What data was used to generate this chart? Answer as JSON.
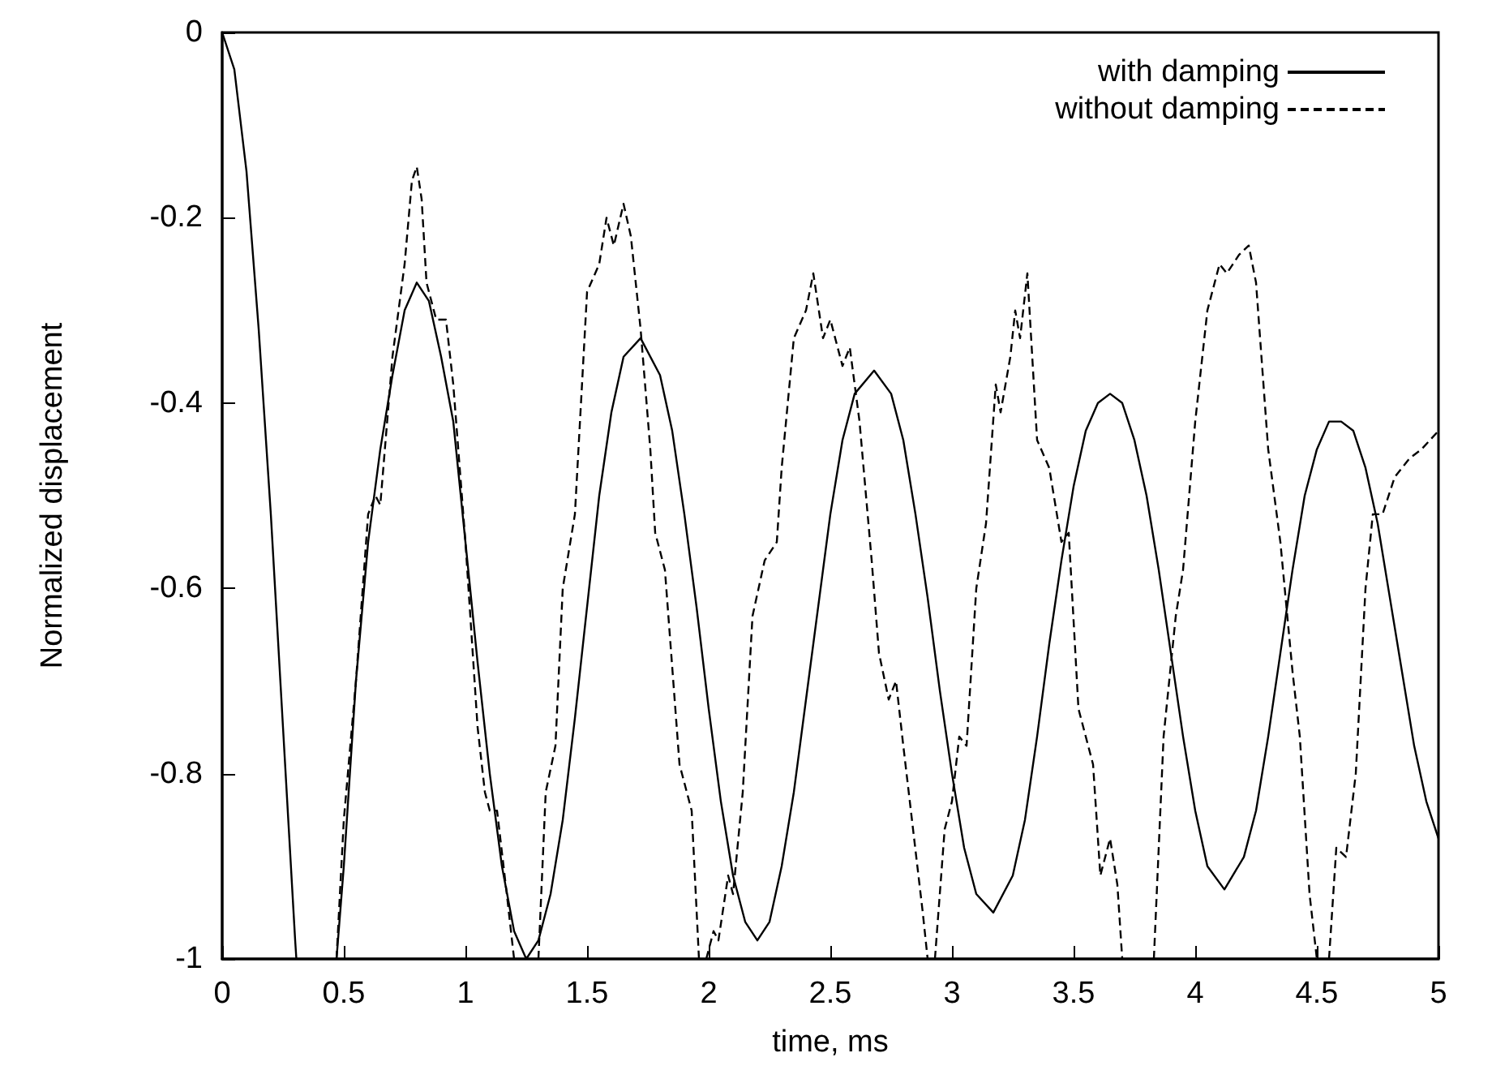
{
  "chart_data": {
    "type": "line",
    "xlabel": "time, ms",
    "ylabel": "Normalized displacement",
    "xlim": [
      0,
      5
    ],
    "ylim": [
      -1,
      0
    ],
    "xticks": [
      0,
      0.5,
      1,
      1.5,
      2,
      2.5,
      3,
      3.5,
      4,
      4.5,
      5
    ],
    "yticks": [
      -1,
      -0.8,
      -0.6,
      -0.4,
      -0.2,
      0
    ],
    "grid": false,
    "legend": "top right",
    "marker": "none",
    "series": [
      {
        "name": "with damping",
        "color": "#000000",
        "line_style": "solid",
        "x": [
          0,
          0.05,
          0.1,
          0.15,
          0.2,
          0.25,
          0.3,
          0.305,
          0.4,
          0.47,
          0.5,
          0.55,
          0.6,
          0.65,
          0.7,
          0.75,
          0.8,
          0.85,
          0.9,
          0.95,
          1.0,
          1.05,
          1.1,
          1.15,
          1.2,
          1.25,
          1.3,
          1.35,
          1.4,
          1.45,
          1.5,
          1.55,
          1.6,
          1.65,
          1.72,
          1.8,
          1.85,
          1.9,
          1.95,
          2.0,
          2.05,
          2.1,
          2.15,
          2.2,
          2.25,
          2.3,
          2.35,
          2.4,
          2.45,
          2.5,
          2.55,
          2.6,
          2.68,
          2.75,
          2.8,
          2.85,
          2.9,
          2.95,
          3.0,
          3.05,
          3.1,
          3.17,
          3.25,
          3.3,
          3.35,
          3.4,
          3.45,
          3.5,
          3.55,
          3.6,
          3.65,
          3.7,
          3.75,
          3.8,
          3.85,
          3.9,
          3.95,
          4.0,
          4.05,
          4.12,
          4.2,
          4.25,
          4.3,
          4.35,
          4.4,
          4.45,
          4.5,
          4.55,
          4.6,
          4.65,
          4.7,
          4.75,
          4.8,
          4.85,
          4.9,
          4.95,
          5.0
        ],
        "values": [
          0,
          -0.04,
          -0.15,
          -0.32,
          -0.52,
          -0.75,
          -0.98,
          -1,
          null,
          -1,
          -0.9,
          -0.7,
          -0.55,
          -0.45,
          -0.37,
          -0.3,
          -0.27,
          -0.29,
          -0.35,
          -0.42,
          -0.55,
          -0.68,
          -0.8,
          -0.9,
          -0.97,
          -1,
          -0.98,
          -0.93,
          -0.85,
          -0.74,
          -0.62,
          -0.5,
          -0.41,
          -0.35,
          -0.33,
          -0.37,
          -0.43,
          -0.52,
          -0.62,
          -0.73,
          -0.83,
          -0.91,
          -0.96,
          -0.98,
          -0.96,
          -0.9,
          -0.82,
          -0.72,
          -0.62,
          -0.52,
          -0.44,
          -0.39,
          -0.365,
          -0.39,
          -0.44,
          -0.52,
          -0.61,
          -0.71,
          -0.8,
          -0.88,
          -0.93,
          -0.95,
          -0.91,
          -0.85,
          -0.76,
          -0.66,
          -0.57,
          -0.49,
          -0.43,
          -0.4,
          -0.39,
          -0.4,
          -0.44,
          -0.5,
          -0.58,
          -0.67,
          -0.76,
          -0.84,
          -0.9,
          -0.925,
          -0.89,
          -0.84,
          -0.76,
          -0.67,
          -0.58,
          -0.5,
          -0.45,
          -0.42,
          -0.42,
          -0.43,
          -0.47,
          -0.53,
          -0.61,
          -0.69,
          -0.77,
          -0.83,
          -0.87
        ]
      },
      {
        "name": "without damping",
        "color": "#000000",
        "line_style": "dashed",
        "x": [
          0.47,
          0.5,
          0.55,
          0.6,
          0.63,
          0.65,
          0.7,
          0.75,
          0.78,
          0.8,
          0.82,
          0.84,
          0.88,
          0.9,
          0.92,
          0.95,
          1.0,
          1.05,
          1.08,
          1.1,
          1.13,
          1.17,
          1.2,
          1.25,
          1.3,
          1.33,
          1.37,
          1.4,
          1.45,
          1.5,
          1.55,
          1.58,
          1.61,
          1.65,
          1.68,
          1.72,
          1.76,
          1.78,
          1.82,
          1.88,
          1.93,
          1.96,
          1.98,
          1.99,
          2.02,
          2.04,
          2.08,
          2.1,
          2.14,
          2.18,
          2.23,
          2.28,
          2.3,
          2.35,
          2.4,
          2.43,
          2.47,
          2.5,
          2.55,
          2.58,
          2.62,
          2.67,
          2.7,
          2.74,
          2.77,
          2.8,
          2.84,
          2.88,
          2.9,
          2.92,
          2.93,
          2.97,
          3.0,
          3.03,
          3.06,
          3.1,
          3.14,
          3.18,
          3.2,
          3.24,
          3.26,
          3.28,
          3.31,
          3.35,
          3.4,
          3.45,
          3.48,
          3.52,
          3.58,
          3.61,
          3.65,
          3.68,
          3.7,
          3.77,
          3.83,
          3.87,
          3.92,
          3.95,
          4.0,
          4.05,
          4.1,
          4.13,
          4.18,
          4.22,
          4.25,
          4.3,
          4.35,
          4.4,
          4.43,
          4.47,
          4.5,
          4.52,
          4.55,
          4.58,
          4.62,
          4.66,
          4.7,
          4.73,
          4.77,
          4.82,
          4.88,
          4.93,
          5.0
        ],
        "values": [
          -1,
          -0.85,
          -0.7,
          -0.52,
          -0.5,
          -0.51,
          -0.35,
          -0.25,
          -0.16,
          -0.145,
          -0.18,
          -0.27,
          -0.31,
          -0.31,
          -0.31,
          -0.38,
          -0.55,
          -0.75,
          -0.82,
          -0.84,
          -0.84,
          -0.93,
          -1,
          null,
          -1,
          -0.82,
          -0.77,
          -0.6,
          -0.52,
          -0.28,
          -0.25,
          -0.2,
          -0.23,
          -0.185,
          -0.22,
          -0.32,
          -0.45,
          -0.54,
          -0.58,
          -0.79,
          -0.84,
          -1,
          null,
          -1,
          -0.97,
          -0.98,
          -0.91,
          -0.93,
          -0.82,
          -0.63,
          -0.57,
          -0.55,
          -0.47,
          -0.33,
          -0.3,
          -0.26,
          -0.33,
          -0.31,
          -0.36,
          -0.34,
          -0.42,
          -0.57,
          -0.67,
          -0.72,
          -0.7,
          -0.77,
          -0.86,
          -0.95,
          -1,
          null,
          -1,
          -0.86,
          -0.83,
          -0.76,
          -0.77,
          -0.6,
          -0.53,
          -0.38,
          -0.41,
          -0.35,
          -0.3,
          -0.33,
          -0.26,
          -0.44,
          -0.47,
          -0.55,
          -0.54,
          -0.73,
          -0.79,
          -0.91,
          -0.87,
          -0.92,
          -1,
          null,
          -1,
          -0.76,
          -0.63,
          -0.58,
          -0.42,
          -0.3,
          -0.25,
          -0.26,
          -0.24,
          -0.23,
          -0.27,
          -0.45,
          -0.55,
          -0.69,
          -0.76,
          -0.93,
          -1,
          null,
          -1,
          -0.88,
          -0.89,
          -0.8,
          -0.6,
          -0.52,
          -0.52,
          -0.48,
          -0.46,
          -0.45,
          -0.43
        ]
      }
    ]
  }
}
